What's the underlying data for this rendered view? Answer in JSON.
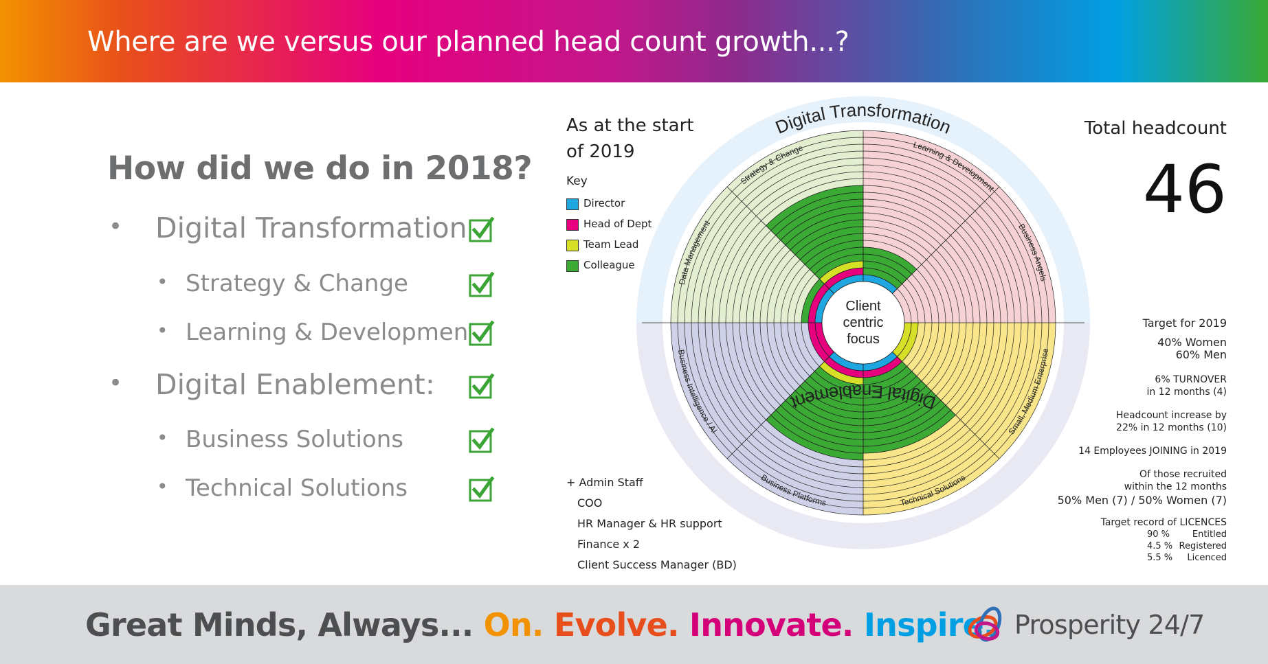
{
  "header": {
    "title": "Where are we versus our planned head count growth...?"
  },
  "review": {
    "question": "How did we do in 2018?",
    "items": [
      {
        "label": "Digital Transformation:",
        "level": 1,
        "done": true
      },
      {
        "label": "Strategy & Change",
        "level": 2,
        "done": true
      },
      {
        "label": "Learning & Development",
        "level": 2,
        "done": true
      },
      {
        "label": "Digital Enablement:",
        "level": 1,
        "done": true
      },
      {
        "label": "Business Solutions",
        "level": 2,
        "done": true
      },
      {
        "label": "Technical Solutions",
        "level": 2,
        "done": true
      }
    ],
    "bullet": "•",
    "check_icon": "checkbox-checked-icon",
    "check_color": "#3aa535"
  },
  "diagram": {
    "as_at_line1": "As at the start",
    "as_at_line2": "of 2019",
    "key_title": "Key",
    "key": [
      {
        "label": "Director",
        "color": "#1ea6e0"
      },
      {
        "label": "Head of Dept",
        "color": "#e6007e"
      },
      {
        "label": "Team Lead",
        "color": "#d8df27"
      },
      {
        "label": "Colleague",
        "color": "#3aaa35"
      }
    ],
    "center_lines": [
      "Client",
      "centric",
      "focus"
    ],
    "outer_top": "Digital Transformation",
    "outer_bottom": "Digital Enablement",
    "segment_labels": [
      "Strategy & Change",
      "Learning & Development",
      "Business Angels",
      "Small, Medium Enterprise",
      "Technical Solutions",
      "Business Platforms",
      "Business Intelligence / AI",
      "Data Management"
    ],
    "quadrants": [
      {
        "name": "Digital Transformation - Strategy & Data",
        "background": "#e3efd0"
      },
      {
        "name": "Digital Transformation - Learning & Angels",
        "background": "#f6d2d5"
      },
      {
        "name": "Digital Enablement - SME & Technical",
        "background": "#f9e58a"
      },
      {
        "name": "Digital Enablement - Platforms & BI",
        "background": "#cfd1e8"
      }
    ],
    "outer_ring_top_color": "#e5f1fb",
    "outer_ring_bottom_color": "#e9e9f4",
    "rings_total": 22,
    "headcount_wedges": [
      {
        "segment": "Data Management",
        "layers": [
          "Director",
          "Head of Dept",
          "Colleague"
        ]
      },
      {
        "segment": "Strategy & Change",
        "layers": [
          "Director",
          "Head of Dept",
          "Team Lead",
          "Colleague",
          "Colleague",
          "Colleague",
          "Colleague",
          "Colleague",
          "Colleague",
          "Colleague",
          "Colleague",
          "Colleague",
          "Colleague",
          "Colleague"
        ]
      },
      {
        "segment": "Learning & Development",
        "layers": [
          "Director",
          "Colleague",
          "Colleague",
          "Colleague",
          "Colleague"
        ]
      },
      {
        "segment": "Business Angels",
        "layers": []
      },
      {
        "segment": "Small, Medium Enterprise",
        "layers": [
          "Team Lead",
          "Team Lead"
        ]
      },
      {
        "segment": "Technical Solutions",
        "layers": [
          "Director",
          "Head of Dept",
          "Colleague",
          "Colleague",
          "Colleague",
          "Colleague",
          "Colleague",
          "Colleague",
          "Colleague",
          "Colleague",
          "Colleague",
          "Colleague",
          "Colleague"
        ]
      },
      {
        "segment": "Business Platforms",
        "layers": [
          "Director",
          "Head of Dept",
          "Team Lead",
          "Colleague",
          "Colleague",
          "Colleague",
          "Colleague",
          "Colleague",
          "Colleague",
          "Colleague",
          "Colleague",
          "Colleague",
          "Colleague",
          "Colleague"
        ]
      },
      {
        "segment": "Business Intelligence / AI",
        "layers": [
          "Head of Dept",
          "Head of Dept"
        ]
      }
    ],
    "admin_title": "+ Admin Staff",
    "admin_staff": [
      "COO",
      "HR Manager & HR support",
      "Finance x 2",
      "Client Success Manager (BD)"
    ],
    "total_label": "Total headcount",
    "total_value": "46",
    "targets": {
      "title": "Target for 2019",
      "women": "40% Women",
      "men": "60% Men",
      "turnover_1": "6% TURNOVER",
      "turnover_2": "in 12 months (4)",
      "increase_1": "Headcount increase by",
      "increase_2": "22% in 12 months (10)",
      "joining": "14 Employees JOINING in 2019",
      "recruited_1": "Of those recruited",
      "recruited_2": "within the 12 months",
      "recruited_3": "50% Men (7) / 50% Women (7)",
      "licences_title": "Target record of LICENCES",
      "licences": [
        {
          "pct": "90 %",
          "label": "Entitled"
        },
        {
          "pct": "4.5 %",
          "label": "Registered"
        },
        {
          "pct": "5.5 %",
          "label": "Licenced"
        }
      ]
    }
  },
  "footer": {
    "tagline_lead": "Great Minds, Always... ",
    "tagline_on": "On.",
    "tagline_evolve": "Evolve.",
    "tagline_innovate": "Innovate.",
    "tagline_inspire": "Inspire.",
    "brand": "Prosperity 24/7",
    "brand_icon": "prosperity-logo-icon"
  }
}
